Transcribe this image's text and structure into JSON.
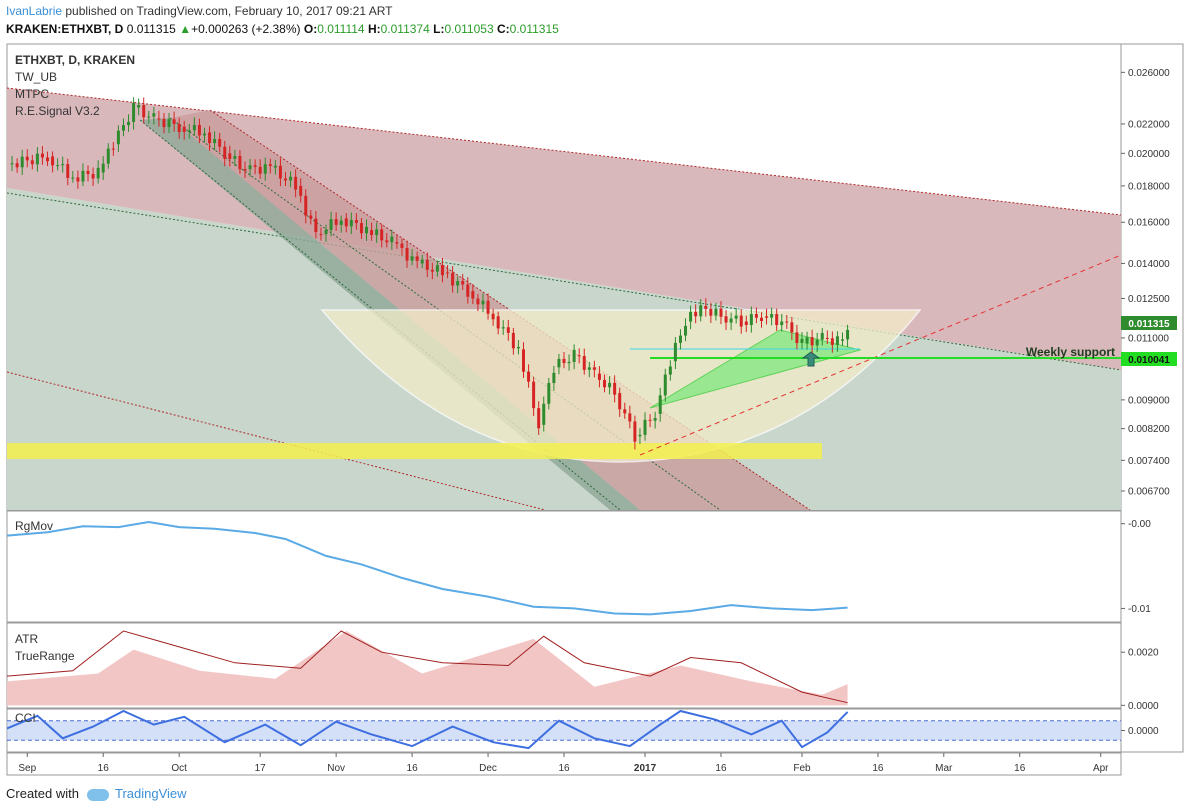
{
  "header": {
    "author": "IvanLabrie",
    "published_text": " published on TradingView.com, February 10, 2017 09:21 ART",
    "symbol_line": "KRAKEN:ETHXBT, D",
    "price": "0.011315",
    "change": "+0.000263 (+2.38%)",
    "o_label": "O:",
    "o_value": "0.011114",
    "h_label": "H:",
    "h_value": "0.011374",
    "l_label": "L:",
    "l_value": "0.011053",
    "c_label": "C:",
    "c_value": "0.011315"
  },
  "indicators": [
    "ETHXBT, D, KRAKEN",
    "TW_UB",
    "MTPC",
    "R.E.Signal V3.2"
  ],
  "footer": {
    "created_with": "Created with",
    "brand": "TradingView"
  },
  "colors": {
    "bull": "#2e8b2e",
    "bear": "#d62424",
    "neutral": "#111111",
    "channel_red": "#d9a3a8",
    "channel_green": "#a7c4ae",
    "support_line": "#22dd22",
    "yellow_zone": "#f3f04e",
    "price_badge": "#2e8b2e",
    "rgmov_line": "#5aaae6",
    "atr_line": "#a02020",
    "truerange_fill": "#f3c6c6",
    "cci_line": "#3d6fe0",
    "cci_band": "#b7c9f3"
  },
  "chart_data": [
    {
      "type": "candlestick",
      "title": "ETHXBT, D, KRAKEN",
      "scale": "log",
      "ylim": [
        0.0063,
        0.0285
      ],
      "y_ticks": [
        "0.026000",
        "0.022000",
        "0.020000",
        "0.018000",
        "0.016000",
        "0.014000",
        "0.012500",
        "0.011000",
        "0.009000",
        "0.008200",
        "0.007400",
        "0.006700"
      ],
      "x_ticks": [
        "Sep",
        "16",
        "Oct",
        "17",
        "Nov",
        "16",
        "Dec",
        "16",
        "2017",
        "16",
        "Feb",
        "16",
        "Mar",
        "16",
        "Apr"
      ],
      "x_range": [
        "2016-08-28",
        "2017-04-05"
      ],
      "close_series": [
        [
          "2016-08-28",
          0.0193
        ],
        [
          "2016-09-05",
          0.0198
        ],
        [
          "2016-09-10",
          0.0185
        ],
        [
          "2016-09-15",
          0.0188
        ],
        [
          "2016-09-18",
          0.0206
        ],
        [
          "2016-09-22",
          0.0232
        ],
        [
          "2016-09-26",
          0.0224
        ],
        [
          "2016-10-01",
          0.0218
        ],
        [
          "2016-10-06",
          0.0214
        ],
        [
          "2016-10-10",
          0.02
        ],
        [
          "2016-10-14",
          0.019
        ],
        [
          "2016-10-19",
          0.0191
        ],
        [
          "2016-10-24",
          0.018
        ],
        [
          "2016-10-28",
          0.0154
        ],
        [
          "2016-11-02",
          0.0162
        ],
        [
          "2016-11-07",
          0.0156
        ],
        [
          "2016-11-12",
          0.015
        ],
        [
          "2016-11-17",
          0.014
        ],
        [
          "2016-11-22",
          0.0136
        ],
        [
          "2016-11-27",
          0.0128
        ],
        [
          "2016-12-02",
          0.0118
        ],
        [
          "2016-12-07",
          0.0106
        ],
        [
          "2016-12-11",
          0.0083
        ],
        [
          "2016-12-14",
          0.01
        ],
        [
          "2016-12-18",
          0.0104
        ],
        [
          "2016-12-22",
          0.0098
        ],
        [
          "2016-12-26",
          0.0092
        ],
        [
          "2016-12-30",
          0.008
        ],
        [
          "2017-01-03",
          0.0086
        ],
        [
          "2017-01-06",
          0.0102
        ],
        [
          "2017-01-09",
          0.0116
        ],
        [
          "2017-01-12",
          0.0122
        ],
        [
          "2017-01-16",
          0.0118
        ],
        [
          "2017-01-20",
          0.0116
        ],
        [
          "2017-01-24",
          0.0118
        ],
        [
          "2017-01-28",
          0.0116
        ],
        [
          "2017-02-01",
          0.0108
        ],
        [
          "2017-02-05",
          0.011
        ],
        [
          "2017-02-08",
          0.0109
        ],
        [
          "2017-02-10",
          0.011315
        ]
      ],
      "annotations": [
        {
          "text": "Weekly support",
          "y": 0.010041
        },
        {
          "text": "0.011315",
          "y": 0.011315
        },
        {
          "text": "0.010041",
          "y": 0.010041
        }
      ]
    },
    {
      "type": "line",
      "title": "RgMov",
      "y_ticks": [
        "-0.00",
        "-0.01"
      ],
      "ylim": [
        -0.0116,
        0.0015
      ],
      "series": [
        {
          "values": [
            [
              "2016-08-28",
              -0.0014
            ],
            [
              "2016-09-05",
              -0.001
            ],
            [
              "2016-09-12",
              -0.0003
            ],
            [
              "2016-09-19",
              -0.0004
            ],
            [
              "2016-09-25",
              0.0002
            ],
            [
              "2016-10-01",
              -0.0004
            ],
            [
              "2016-10-08",
              -0.0006
            ],
            [
              "2016-10-16",
              -0.0011
            ],
            [
              "2016-10-22",
              -0.0018
            ],
            [
              "2016-10-30",
              -0.0038
            ],
            [
              "2016-11-06",
              -0.0048
            ],
            [
              "2016-11-14",
              -0.0064
            ],
            [
              "2016-11-22",
              -0.0077
            ],
            [
              "2016-12-01",
              -0.0086
            ],
            [
              "2016-12-10",
              -0.0098
            ],
            [
              "2016-12-18",
              -0.01
            ],
            [
              "2016-12-26",
              -0.0106
            ],
            [
              "2017-01-02",
              -0.0107
            ],
            [
              "2017-01-10",
              -0.0103
            ],
            [
              "2017-01-18",
              -0.0096
            ],
            [
              "2017-01-26",
              -0.01
            ],
            [
              "2017-02-03",
              -0.0102
            ],
            [
              "2017-02-10",
              -0.0099
            ]
          ]
        }
      ]
    },
    {
      "type": "area",
      "title": "ATR",
      "y_ticks": [
        "0.0020",
        "0.0000"
      ],
      "ylim": [
        -0.0001,
        0.0031
      ],
      "series": [
        {
          "name": "ATR",
          "values": [
            [
              "2016-08-28",
              0.0011
            ],
            [
              "2016-09-10",
              0.0013
            ],
            [
              "2016-09-20",
              0.0028
            ],
            [
              "2016-10-01",
              0.0022
            ],
            [
              "2016-10-12",
              0.0016
            ],
            [
              "2016-10-25",
              0.0014
            ],
            [
              "2016-11-02",
              0.0028
            ],
            [
              "2016-11-10",
              0.002
            ],
            [
              "2016-11-22",
              0.0016
            ],
            [
              "2016-12-05",
              0.0015
            ],
            [
              "2016-12-12",
              0.0026
            ],
            [
              "2016-12-20",
              0.0016
            ],
            [
              "2017-01-02",
              0.0011
            ],
            [
              "2017-01-10",
              0.0018
            ],
            [
              "2017-01-20",
              0.0016
            ],
            [
              "2017-02-01",
              0.0005
            ],
            [
              "2017-02-10",
              0.0001
            ]
          ]
        },
        {
          "name": "TrueRange",
          "values": [
            [
              "2016-08-28",
              0.0009
            ],
            [
              "2016-09-15",
              0.0012
            ],
            [
              "2016-09-22",
              0.0021
            ],
            [
              "2016-10-05",
              0.0013
            ],
            [
              "2016-10-20",
              0.001
            ],
            [
              "2016-11-03",
              0.0028
            ],
            [
              "2016-11-18",
              0.0012
            ],
            [
              "2016-12-10",
              0.0025
            ],
            [
              "2016-12-22",
              0.0007
            ],
            [
              "2017-01-08",
              0.0015
            ],
            [
              "2017-01-22",
              0.0009
            ],
            [
              "2017-02-05",
              0.0004
            ],
            [
              "2017-02-10",
              0.0008
            ]
          ]
        }
      ]
    },
    {
      "type": "line",
      "title": "CCI",
      "y_ticks": [
        "0.0000"
      ],
      "ylim": [
        -220,
        220
      ],
      "band": [
        -100,
        100
      ],
      "series": [
        {
          "values": [
            [
              "2016-08-28",
              20
            ],
            [
              "2016-09-03",
              150
            ],
            [
              "2016-09-08",
              -80
            ],
            [
              "2016-09-14",
              40
            ],
            [
              "2016-09-20",
              200
            ],
            [
              "2016-09-26",
              60
            ],
            [
              "2016-10-02",
              140
            ],
            [
              "2016-10-10",
              -120
            ],
            [
              "2016-10-18",
              60
            ],
            [
              "2016-10-25",
              -150
            ],
            [
              "2016-11-01",
              90
            ],
            [
              "2016-11-08",
              -40
            ],
            [
              "2016-11-16",
              -160
            ],
            [
              "2016-11-24",
              40
            ],
            [
              "2016-12-02",
              -120
            ],
            [
              "2016-12-09",
              -180
            ],
            [
              "2016-12-15",
              100
            ],
            [
              "2016-12-22",
              -80
            ],
            [
              "2016-12-29",
              -160
            ],
            [
              "2017-01-04",
              60
            ],
            [
              "2017-01-08",
              200
            ],
            [
              "2017-01-15",
              110
            ],
            [
              "2017-01-22",
              -40
            ],
            [
              "2017-01-28",
              100
            ],
            [
              "2017-02-01",
              -170
            ],
            [
              "2017-02-06",
              -20
            ],
            [
              "2017-02-10",
              190
            ]
          ]
        }
      ]
    }
  ]
}
